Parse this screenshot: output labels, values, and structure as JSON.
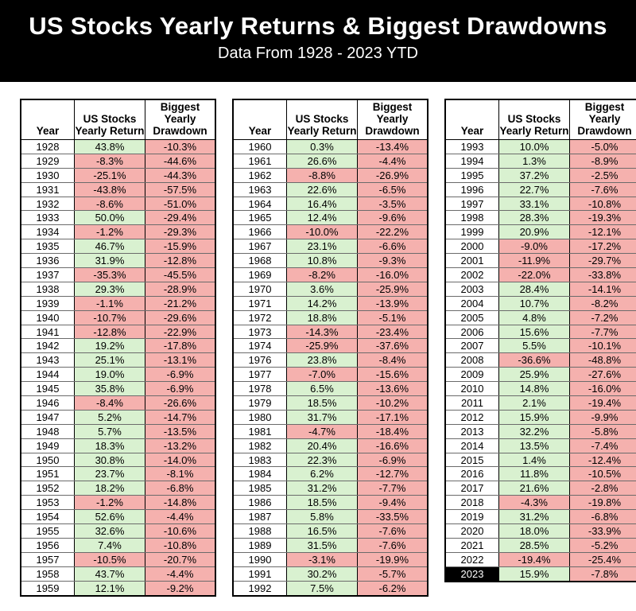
{
  "header": {
    "title": "US Stocks Yearly Returns & Biggest Drawdowns",
    "subtitle": "Data From 1928 - 2023 YTD"
  },
  "colors": {
    "pos": "#d9f1d0",
    "neg": "#f5b1ae",
    "hl-bg": "#000000",
    "hl-fg": "#ffffff",
    "banner-bg": "#000000",
    "banner-fg": "#ffffff"
  },
  "chart_data": {
    "type": "table",
    "title": "US Stocks Yearly Returns & Biggest Drawdowns",
    "subtitle": "Data From 1928 - 2023 YTD",
    "column_headers": [
      "Year",
      "US Stocks Yearly Return",
      "Biggest Yearly Drawdown"
    ],
    "highlight_year": "2023",
    "tables": [
      {
        "rows": [
          [
            "1928",
            "43.8%",
            "-10.3%"
          ],
          [
            "1929",
            "-8.3%",
            "-44.6%"
          ],
          [
            "1930",
            "-25.1%",
            "-44.3%"
          ],
          [
            "1931",
            "-43.8%",
            "-57.5%"
          ],
          [
            "1932",
            "-8.6%",
            "-51.0%"
          ],
          [
            "1933",
            "50.0%",
            "-29.4%"
          ],
          [
            "1934",
            "-1.2%",
            "-29.3%"
          ],
          [
            "1935",
            "46.7%",
            "-15.9%"
          ],
          [
            "1936",
            "31.9%",
            "-12.8%"
          ],
          [
            "1937",
            "-35.3%",
            "-45.5%"
          ],
          [
            "1938",
            "29.3%",
            "-28.9%"
          ],
          [
            "1939",
            "-1.1%",
            "-21.2%"
          ],
          [
            "1940",
            "-10.7%",
            "-29.6%"
          ],
          [
            "1941",
            "-12.8%",
            "-22.9%"
          ],
          [
            "1942",
            "19.2%",
            "-17.8%"
          ],
          [
            "1943",
            "25.1%",
            "-13.1%"
          ],
          [
            "1944",
            "19.0%",
            "-6.9%"
          ],
          [
            "1945",
            "35.8%",
            "-6.9%"
          ],
          [
            "1946",
            "-8.4%",
            "-26.6%"
          ],
          [
            "1947",
            "5.2%",
            "-14.7%"
          ],
          [
            "1948",
            "5.7%",
            "-13.5%"
          ],
          [
            "1949",
            "18.3%",
            "-13.2%"
          ],
          [
            "1950",
            "30.8%",
            "-14.0%"
          ],
          [
            "1951",
            "23.7%",
            "-8.1%"
          ],
          [
            "1952",
            "18.2%",
            "-6.8%"
          ],
          [
            "1953",
            "-1.2%",
            "-14.8%"
          ],
          [
            "1954",
            "52.6%",
            "-4.4%"
          ],
          [
            "1955",
            "32.6%",
            "-10.6%"
          ],
          [
            "1956",
            "7.4%",
            "-10.8%"
          ],
          [
            "1957",
            "-10.5%",
            "-20.7%"
          ],
          [
            "1958",
            "43.7%",
            "-4.4%"
          ],
          [
            "1959",
            "12.1%",
            "-9.2%"
          ]
        ]
      },
      {
        "rows": [
          [
            "1960",
            "0.3%",
            "-13.4%"
          ],
          [
            "1961",
            "26.6%",
            "-4.4%"
          ],
          [
            "1962",
            "-8.8%",
            "-26.9%"
          ],
          [
            "1963",
            "22.6%",
            "-6.5%"
          ],
          [
            "1964",
            "16.4%",
            "-3.5%"
          ],
          [
            "1965",
            "12.4%",
            "-9.6%"
          ],
          [
            "1966",
            "-10.0%",
            "-22.2%"
          ],
          [
            "1967",
            "23.1%",
            "-6.6%"
          ],
          [
            "1968",
            "10.8%",
            "-9.3%"
          ],
          [
            "1969",
            "-8.2%",
            "-16.0%"
          ],
          [
            "1970",
            "3.6%",
            "-25.9%"
          ],
          [
            "1971",
            "14.2%",
            "-13.9%"
          ],
          [
            "1972",
            "18.8%",
            "-5.1%"
          ],
          [
            "1973",
            "-14.3%",
            "-23.4%"
          ],
          [
            "1974",
            "-25.9%",
            "-37.6%"
          ],
          [
            "1976",
            "23.8%",
            "-8.4%"
          ],
          [
            "1977",
            "-7.0%",
            "-15.6%"
          ],
          [
            "1978",
            "6.5%",
            "-13.6%"
          ],
          [
            "1979",
            "18.5%",
            "-10.2%"
          ],
          [
            "1980",
            "31.7%",
            "-17.1%"
          ],
          [
            "1981",
            "-4.7%",
            "-18.4%"
          ],
          [
            "1982",
            "20.4%",
            "-16.6%"
          ],
          [
            "1983",
            "22.3%",
            "-6.9%"
          ],
          [
            "1984",
            "6.2%",
            "-12.7%"
          ],
          [
            "1985",
            "31.2%",
            "-7.7%"
          ],
          [
            "1986",
            "18.5%",
            "-9.4%"
          ],
          [
            "1987",
            "5.8%",
            "-33.5%"
          ],
          [
            "1988",
            "16.5%",
            "-7.6%"
          ],
          [
            "1989",
            "31.5%",
            "-7.6%"
          ],
          [
            "1990",
            "-3.1%",
            "-19.9%"
          ],
          [
            "1991",
            "30.2%",
            "-5.7%"
          ],
          [
            "1992",
            "7.5%",
            "-6.2%"
          ]
        ]
      },
      {
        "rows": [
          [
            "1993",
            "10.0%",
            "-5.0%"
          ],
          [
            "1994",
            "1.3%",
            "-8.9%"
          ],
          [
            "1995",
            "37.2%",
            "-2.5%"
          ],
          [
            "1996",
            "22.7%",
            "-7.6%"
          ],
          [
            "1997",
            "33.1%",
            "-10.8%"
          ],
          [
            "1998",
            "28.3%",
            "-19.3%"
          ],
          [
            "1999",
            "20.9%",
            "-12.1%"
          ],
          [
            "2000",
            "-9.0%",
            "-17.2%"
          ],
          [
            "2001",
            "-11.9%",
            "-29.7%"
          ],
          [
            "2002",
            "-22.0%",
            "-33.8%"
          ],
          [
            "2003",
            "28.4%",
            "-14.1%"
          ],
          [
            "2004",
            "10.7%",
            "-8.2%"
          ],
          [
            "2005",
            "4.8%",
            "-7.2%"
          ],
          [
            "2006",
            "15.6%",
            "-7.7%"
          ],
          [
            "2007",
            "5.5%",
            "-10.1%"
          ],
          [
            "2008",
            "-36.6%",
            "-48.8%"
          ],
          [
            "2009",
            "25.9%",
            "-27.6%"
          ],
          [
            "2010",
            "14.8%",
            "-16.0%"
          ],
          [
            "2011",
            "2.1%",
            "-19.4%"
          ],
          [
            "2012",
            "15.9%",
            "-9.9%"
          ],
          [
            "2013",
            "32.2%",
            "-5.8%"
          ],
          [
            "2014",
            "13.5%",
            "-7.4%"
          ],
          [
            "2015",
            "1.4%",
            "-12.4%"
          ],
          [
            "2016",
            "11.8%",
            "-10.5%"
          ],
          [
            "2017",
            "21.6%",
            "-2.8%"
          ],
          [
            "2018",
            "-4.3%",
            "-19.8%"
          ],
          [
            "2019",
            "31.2%",
            "-6.8%"
          ],
          [
            "2020",
            "18.0%",
            "-33.9%"
          ],
          [
            "2021",
            "28.5%",
            "-5.2%"
          ],
          [
            "2022",
            "-19.4%",
            "-25.4%"
          ],
          [
            "2023",
            "15.9%",
            "-7.8%"
          ]
        ]
      }
    ]
  }
}
